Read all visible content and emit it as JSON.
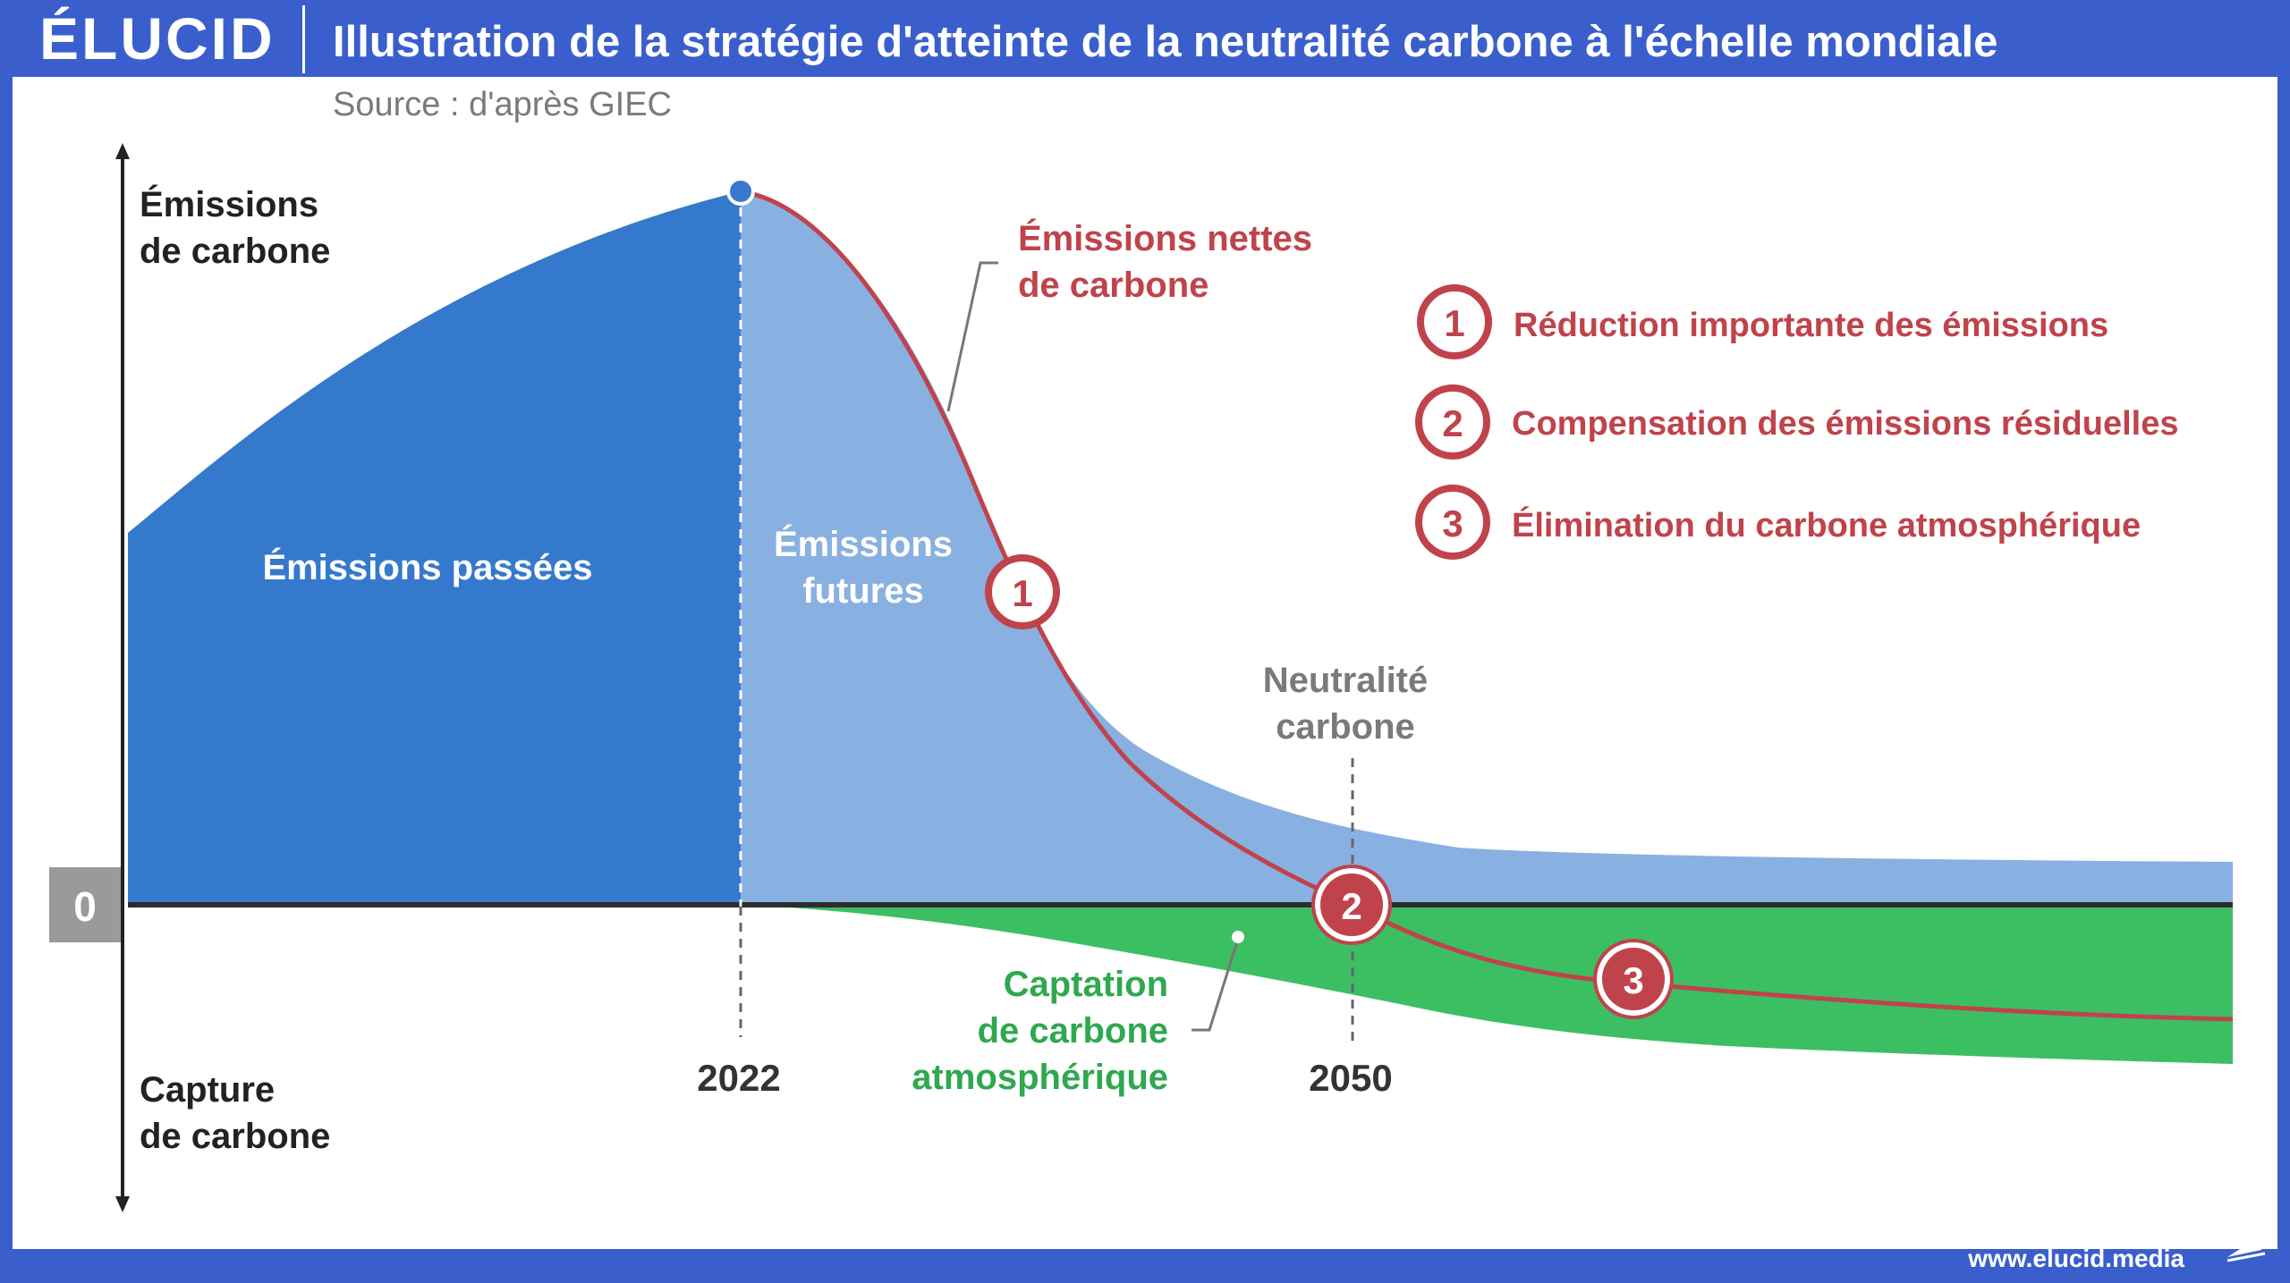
{
  "header": {
    "logo_text": "ÉLUCID",
    "title": "Illustration de la stratégie d'atteinte de la neutralité carbone à l'échelle mondiale",
    "source": "Source : d'après GIEC"
  },
  "axis": {
    "top_label_1": "Émissions",
    "top_label_2": "de carbone",
    "bottom_label_1": "Capture",
    "bottom_label_2": "de carbone",
    "zero_label": "0",
    "year_1": "2022",
    "year_2": "2050"
  },
  "areas": {
    "past_1": "Émissions passées",
    "future_1": "Émissions",
    "future_2": "futures",
    "capture_1": "Captation",
    "capture_2": "de carbone",
    "capture_3": "atmosphérique"
  },
  "annotations": {
    "net_1": "Émissions nettes",
    "net_2": "de carbone",
    "neutral_1": "Neutralité",
    "neutral_2": "carbone"
  },
  "markers": {
    "m1": "1",
    "m2": "2",
    "m3": "3"
  },
  "legend": {
    "items": [
      {
        "num": "1",
        "label": "Réduction importante des émissions"
      },
      {
        "num": "2",
        "label": "Compensation des émissions résiduelles"
      },
      {
        "num": "3",
        "label": "Élimination du carbone atmosphérique"
      }
    ]
  },
  "footer": {
    "url": "www.elucid.media"
  },
  "colors": {
    "brand_blue": "#3a5fcd",
    "past_emissions": "#3579cc",
    "future_emissions": "#88b0e1",
    "capture_green": "#3cbf63",
    "net_line_red": "#c0434b",
    "legend_red": "#c0434b",
    "capture_text_green": "#2fa84f",
    "zero_box": "#9a9a9a"
  }
}
